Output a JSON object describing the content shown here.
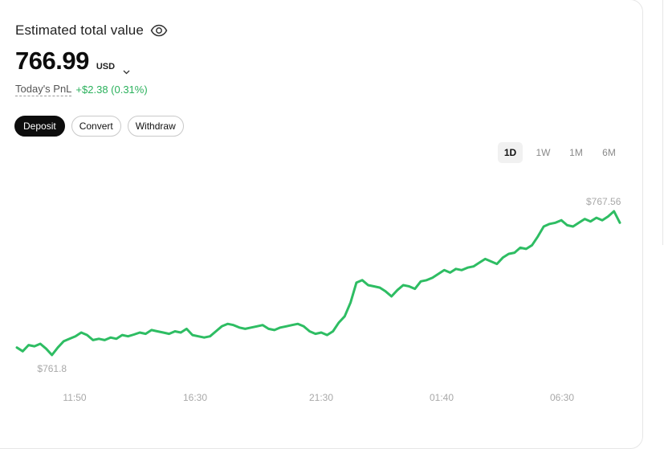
{
  "header": {
    "title": "Estimated total value"
  },
  "balance": {
    "amount": "766.99",
    "currency": "USD"
  },
  "pnl": {
    "label": "Today's PnL",
    "value": "+$2.38 (0.31%)"
  },
  "actions": {
    "deposit_label": "Deposit",
    "convert_label": "Convert",
    "withdraw_label": "Withdraw"
  },
  "range_tabs": [
    {
      "label": "1D",
      "active": true
    },
    {
      "label": "1W",
      "active": false
    },
    {
      "label": "1M",
      "active": false
    },
    {
      "label": "6M",
      "active": false
    }
  ],
  "colors": {
    "line": "#2ebd63",
    "positive": "#2bb15c",
    "primary_button": "#0d0d0d"
  },
  "chart_data": {
    "type": "line",
    "x_tick_labels": [
      "11:50",
      "16:30",
      "21:30",
      "01:40",
      "06:30"
    ],
    "max_label": "$767.56",
    "min_label": "$761.8",
    "ylim": [
      761.8,
      767.56
    ],
    "series": [
      {
        "values": [
          762.1,
          761.95,
          762.2,
          762.15,
          762.25,
          762.05,
          761.8,
          762.1,
          762.35,
          762.45,
          762.55,
          762.7,
          762.6,
          762.4,
          762.45,
          762.4,
          762.5,
          762.45,
          762.6,
          762.55,
          762.62,
          762.7,
          762.65,
          762.8,
          762.75,
          762.7,
          762.65,
          762.75,
          762.7,
          762.85,
          762.6,
          762.55,
          762.5,
          762.55,
          762.75,
          762.95,
          763.05,
          763.0,
          762.9,
          762.85,
          762.9,
          762.95,
          763.0,
          762.85,
          762.8,
          762.9,
          762.95,
          763.0,
          763.05,
          762.95,
          762.75,
          762.65,
          762.7,
          762.6,
          762.75,
          763.1,
          763.35,
          763.9,
          764.7,
          764.8,
          764.6,
          764.55,
          764.5,
          764.35,
          764.15,
          764.4,
          764.6,
          764.55,
          764.45,
          764.75,
          764.8,
          764.9,
          765.05,
          765.2,
          765.1,
          765.25,
          765.2,
          765.3,
          765.35,
          765.5,
          765.65,
          765.55,
          765.45,
          765.7,
          765.85,
          765.9,
          766.1,
          766.05,
          766.2,
          766.55,
          766.95,
          767.05,
          767.1,
          767.2,
          767.0,
          766.95,
          767.1,
          767.25,
          767.15,
          767.3,
          767.2,
          767.35,
          767.56,
          767.1
        ]
      }
    ]
  }
}
